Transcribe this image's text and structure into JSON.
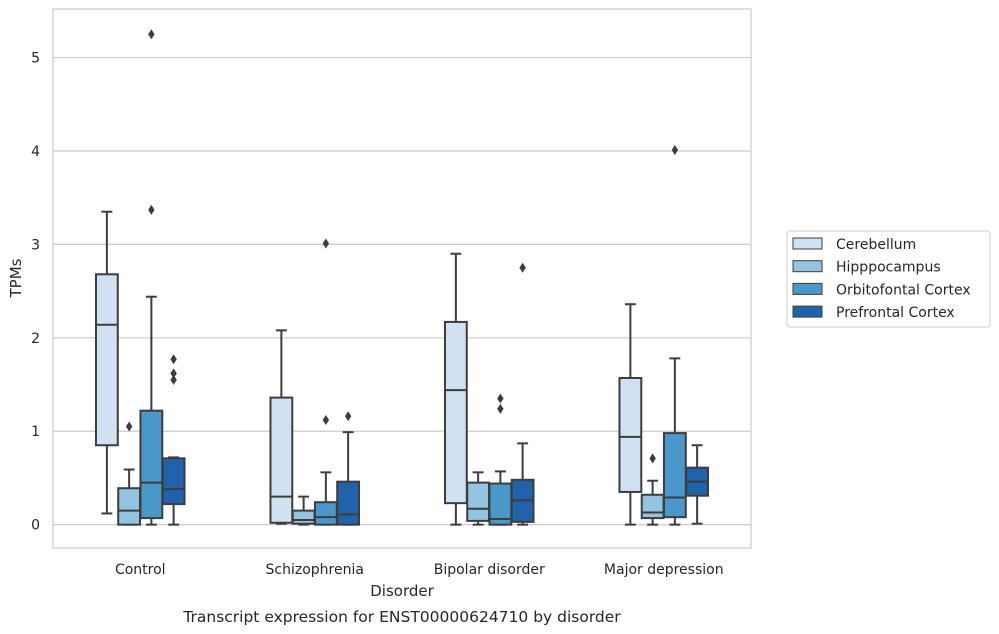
{
  "chart_data": {
    "type": "box",
    "title": "",
    "caption": "Transcript expression for ENST00000624710 by disorder",
    "xlabel": "Disorder",
    "ylabel": "TPMs",
    "ylim": [
      -0.25,
      5.52
    ],
    "yticks": [
      0,
      1,
      2,
      3,
      4,
      5
    ],
    "grid": "horizontal",
    "legend_position": "right",
    "categories": [
      "Control",
      "Schizophrenia",
      "Bipolar disorder",
      "Major depression"
    ],
    "series": [
      {
        "name": "Cerebellum",
        "color": "#d0e1f2",
        "boxes": [
          {
            "whislo": 0.12,
            "q1": 0.85,
            "med": 2.14,
            "q3": 2.68,
            "whishi": 3.35,
            "fliers": []
          },
          {
            "whislo": 0.01,
            "q1": 0.02,
            "med": 0.3,
            "q3": 1.36,
            "whishi": 2.08,
            "fliers": []
          },
          {
            "whislo": 0.0,
            "q1": 0.23,
            "med": 1.44,
            "q3": 2.17,
            "whishi": 2.9,
            "fliers": []
          },
          {
            "whislo": 0.0,
            "q1": 0.35,
            "med": 0.94,
            "q3": 1.57,
            "whishi": 2.36,
            "fliers": []
          }
        ]
      },
      {
        "name": "Hipppocampus",
        "color": "#94c4df",
        "boxes": [
          {
            "whislo": 0.0,
            "q1": 0.0,
            "med": 0.15,
            "q3": 0.39,
            "whishi": 0.59,
            "fliers": [
              1.05
            ]
          },
          {
            "whislo": 0.0,
            "q1": 0.01,
            "med": 0.05,
            "q3": 0.15,
            "whishi": 0.3,
            "fliers": []
          },
          {
            "whislo": 0.0,
            "q1": 0.04,
            "med": 0.17,
            "q3": 0.45,
            "whishi": 0.56,
            "fliers": []
          },
          {
            "whislo": 0.0,
            "q1": 0.07,
            "med": 0.13,
            "q3": 0.32,
            "whishi": 0.47,
            "fliers": [
              0.71
            ]
          }
        ]
      },
      {
        "name": "Orbitofontal Cortex",
        "color": "#4a98c9",
        "boxes": [
          {
            "whislo": 0.0,
            "q1": 0.07,
            "med": 0.45,
            "q3": 1.22,
            "whishi": 2.44,
            "fliers": [
              3.37,
              5.25
            ]
          },
          {
            "whislo": 0.0,
            "q1": 0.0,
            "med": 0.08,
            "q3": 0.24,
            "whishi": 0.56,
            "fliers": [
              1.12,
              3.01
            ]
          },
          {
            "whislo": 0.0,
            "q1": 0.0,
            "med": 0.06,
            "q3": 0.44,
            "whishi": 0.57,
            "fliers": [
              1.24,
              1.35
            ]
          },
          {
            "whislo": 0.0,
            "q1": 0.08,
            "med": 0.29,
            "q3": 0.98,
            "whishi": 1.78,
            "fliers": [
              4.01
            ]
          }
        ]
      },
      {
        "name": "Prefrontal Cortex",
        "color": "#2163aa",
        "boxes": [
          {
            "whislo": 0.0,
            "q1": 0.22,
            "med": 0.38,
            "q3": 0.71,
            "whishi": 0.72,
            "fliers": [
              1.55,
              1.62,
              1.77
            ]
          },
          {
            "whislo": 0.0,
            "q1": 0.0,
            "med": 0.11,
            "q3": 0.46,
            "whishi": 0.99,
            "fliers": [
              1.16
            ]
          },
          {
            "whislo": 0.0,
            "q1": 0.03,
            "med": 0.26,
            "q3": 0.48,
            "whishi": 0.87,
            "fliers": [
              2.75
            ]
          },
          {
            "whislo": 0.01,
            "q1": 0.31,
            "med": 0.46,
            "q3": 0.61,
            "whishi": 0.85,
            "fliers": []
          }
        ]
      }
    ]
  }
}
